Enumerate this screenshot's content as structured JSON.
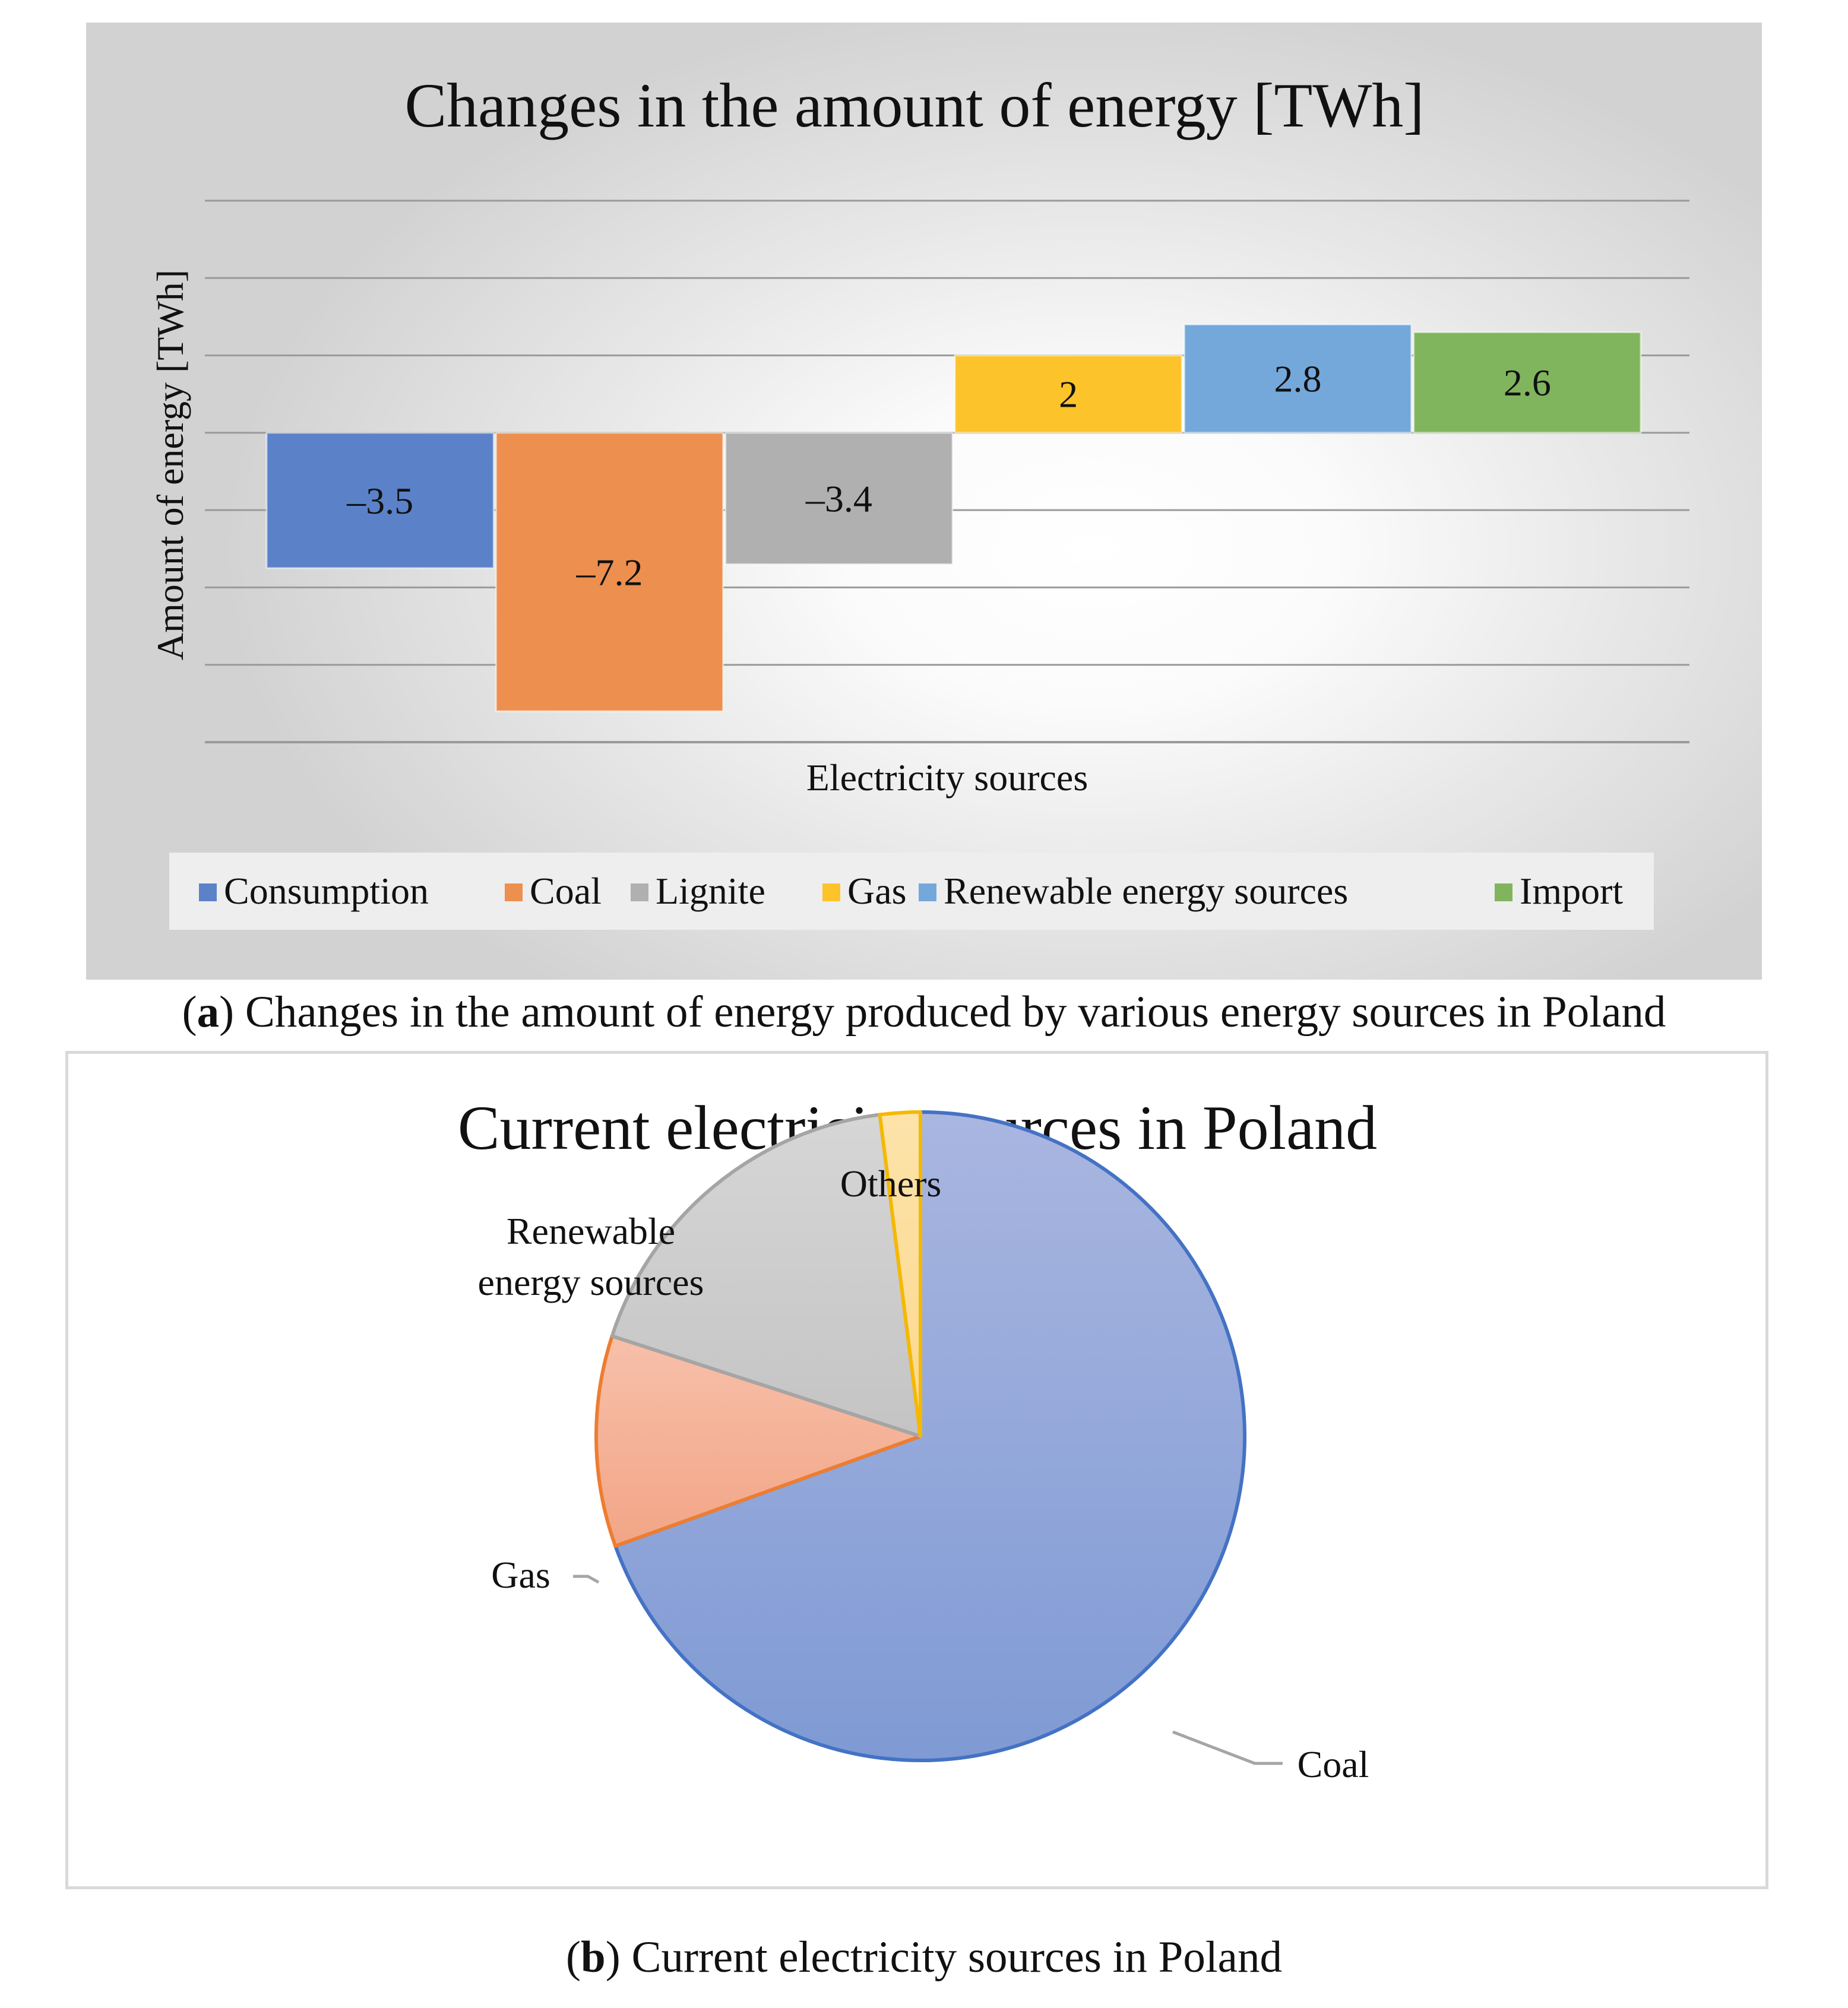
{
  "chart_data": [
    {
      "type": "bar",
      "title": "Changes in the amount of energy [TWh]",
      "xlabel": "Electricity sources",
      "ylabel": "Amount of energy [TWh]",
      "ylim": [
        -8,
        6
      ],
      "grid": true,
      "legend_position": "bottom",
      "series": [
        {
          "name": "Consumption",
          "value": -3.5,
          "label": "–3.5",
          "color": "#5b82c9"
        },
        {
          "name": "Coal",
          "value": -7.2,
          "label": "–7.2",
          "color": "#ed8f4f"
        },
        {
          "name": "Lignite",
          "value": -3.4,
          "label": "–3.4",
          "color": "#b0b0b0"
        },
        {
          "name": "Gas",
          "value": 2,
          "label": "2",
          "color": "#fdc32b"
        },
        {
          "name": "Renewable energy sources",
          "value": 2.8,
          "label": "2.8",
          "color": "#74a8db"
        },
        {
          "name": "Import",
          "value": 2.6,
          "label": "2.6",
          "color": "#80b55e"
        }
      ]
    },
    {
      "type": "pie",
      "title": "Current electricity sources in Poland",
      "slices": [
        {
          "name": "Coal",
          "value": 69.5,
          "label": "Coal",
          "color": "#8fa3d8",
          "stroke": "#4472c4"
        },
        {
          "name": "Gas",
          "value": 10.5,
          "label": "Gas",
          "color": "#f5b197",
          "stroke": "#ed7d31"
        },
        {
          "name": "Renewable energy sources",
          "value": 18,
          "label_lines": [
            "Renewable",
            "energy sources"
          ],
          "color": "#cbcbcb",
          "stroke": "#a5a5a5"
        },
        {
          "name": "Others",
          "value": 2,
          "label": "Others",
          "color": "#fcdc98",
          "stroke": "#f5b800"
        }
      ]
    }
  ],
  "captions": {
    "a_letter": "a",
    "a_text": ") Changes in the amount of energy produced by various energy sources in Poland",
    "b_letter": "b",
    "b_text": ") Current electricity sources in Poland"
  }
}
